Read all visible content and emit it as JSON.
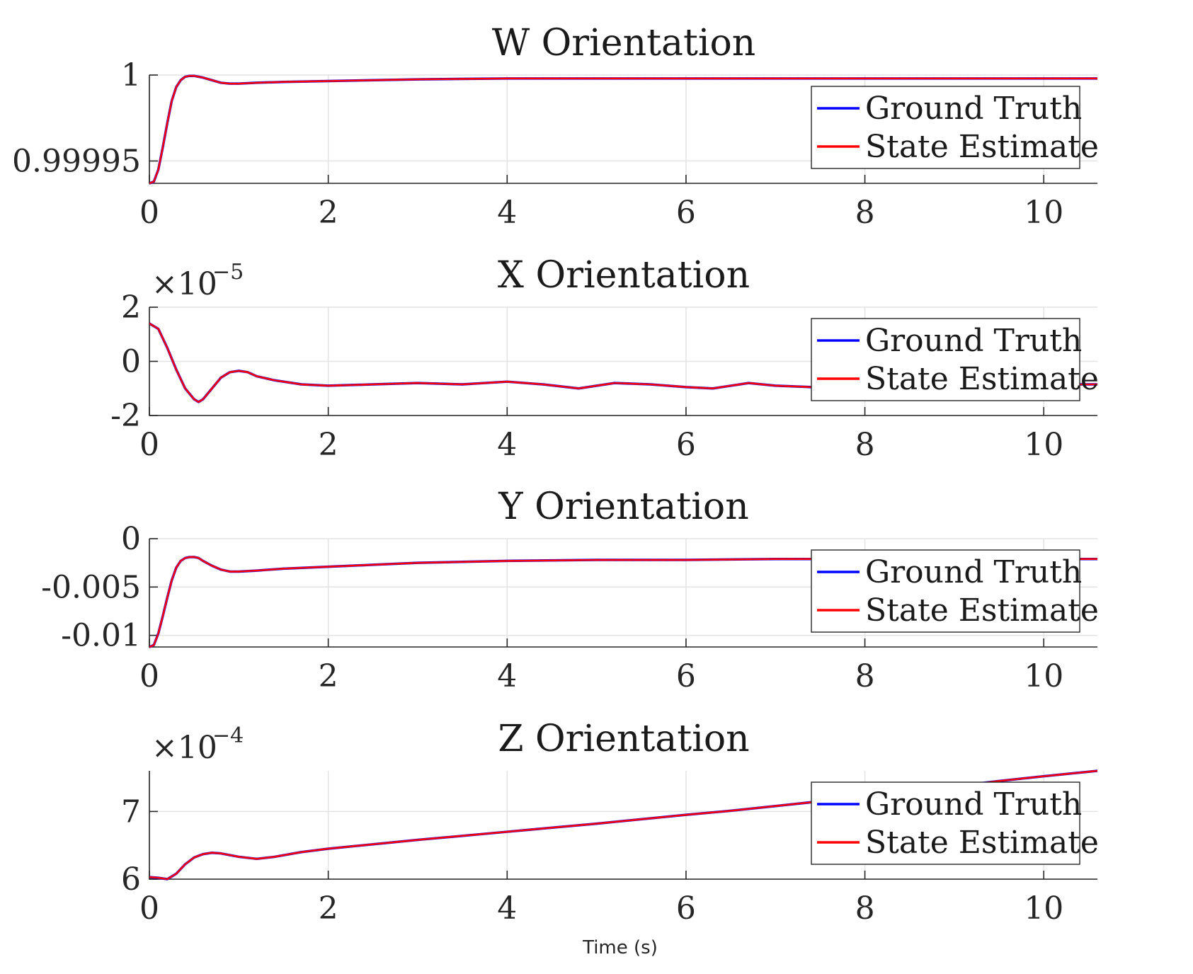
{
  "figure": {
    "xlabel": "Time (s)"
  },
  "legend": {
    "items": [
      {
        "label": "Ground Truth",
        "color": "#0000ff"
      },
      {
        "label": "State Estimate",
        "color": "#ff0000"
      }
    ]
  },
  "chart_data": [
    {
      "type": "line",
      "title": "W Orientation",
      "xlim": [
        0,
        10.6
      ],
      "ylim": [
        0.999937,
        1.0
      ],
      "xticks": [
        0,
        2,
        4,
        6,
        8,
        10
      ],
      "xtick_labels": [
        "0",
        "2",
        "4",
        "6",
        "8",
        "10"
      ],
      "yticks": [
        0.99995,
        1.0
      ],
      "ytick_labels": [
        "0.99995",
        "1"
      ],
      "multiplier": "",
      "legend_position": "top-right",
      "grid": true,
      "series": [
        {
          "name": "Ground Truth",
          "x": [
            0,
            0.05,
            0.1,
            0.15,
            0.2,
            0.25,
            0.3,
            0.35,
            0.4,
            0.45,
            0.5,
            0.6,
            0.7,
            0.8,
            0.9,
            1.0,
            1.2,
            1.5,
            2.0,
            3.0,
            4.0,
            5.0,
            6.0,
            7.0,
            8.0,
            9.0,
            10.0,
            10.6
          ],
          "y": [
            0.999937,
            0.999938,
            0.999945,
            0.999958,
            0.999972,
            0.999985,
            0.999993,
            0.999997,
            0.999999,
            0.9999995,
            0.9999995,
            0.9999985,
            0.999997,
            0.9999955,
            0.999995,
            0.999995,
            0.9999955,
            0.999996,
            0.9999965,
            0.9999975,
            0.999998,
            0.999998,
            0.999998,
            0.999998,
            0.999998,
            0.999998,
            0.999998,
            0.999998
          ]
        },
        {
          "name": "State Estimate",
          "x": [
            0,
            0.05,
            0.1,
            0.15,
            0.2,
            0.25,
            0.3,
            0.35,
            0.4,
            0.45,
            0.5,
            0.6,
            0.7,
            0.8,
            0.9,
            1.0,
            1.2,
            1.5,
            2.0,
            3.0,
            4.0,
            5.0,
            6.0,
            7.0,
            8.0,
            9.0,
            10.0,
            10.6
          ],
          "y": [
            0.999937,
            0.999938,
            0.999945,
            0.999958,
            0.999972,
            0.999985,
            0.999993,
            0.999997,
            0.999999,
            0.9999995,
            0.9999995,
            0.9999985,
            0.999997,
            0.9999955,
            0.999995,
            0.999995,
            0.9999955,
            0.999996,
            0.9999965,
            0.9999975,
            0.999998,
            0.999998,
            0.999998,
            0.999998,
            0.999998,
            0.999998,
            0.999998,
            0.999998
          ]
        }
      ]
    },
    {
      "type": "line",
      "title": "X Orientation",
      "xlim": [
        0,
        10.6
      ],
      "ylim": [
        -2,
        2
      ],
      "xticks": [
        0,
        2,
        4,
        6,
        8,
        10
      ],
      "xtick_labels": [
        "0",
        "2",
        "4",
        "6",
        "8",
        "10"
      ],
      "yticks": [
        -2,
        0,
        2
      ],
      "ytick_labels": [
        "-2",
        "0",
        "2"
      ],
      "multiplier": "×10",
      "multiplier_exponent": "−5",
      "legend_position": "top-right",
      "grid": true,
      "series": [
        {
          "name": "Ground Truth",
          "x": [
            0,
            0.1,
            0.2,
            0.3,
            0.4,
            0.5,
            0.55,
            0.6,
            0.7,
            0.8,
            0.9,
            1.0,
            1.1,
            1.2,
            1.4,
            1.7,
            2.0,
            2.5,
            3.0,
            3.5,
            4.0,
            4.4,
            4.8,
            5.2,
            5.6,
            6.0,
            6.3,
            6.7,
            7.0,
            7.4,
            8.0,
            8.5,
            9.0,
            9.5,
            10.0,
            10.6
          ],
          "y": [
            1.4,
            1.2,
            0.5,
            -0.3,
            -1.0,
            -1.4,
            -1.5,
            -1.4,
            -1.0,
            -0.6,
            -0.4,
            -0.35,
            -0.4,
            -0.55,
            -0.7,
            -0.85,
            -0.9,
            -0.85,
            -0.8,
            -0.85,
            -0.75,
            -0.85,
            -1.0,
            -0.8,
            -0.85,
            -0.95,
            -1.0,
            -0.8,
            -0.9,
            -0.95,
            -0.8,
            -0.9,
            -0.85,
            -0.9,
            -0.85,
            -0.85
          ]
        },
        {
          "name": "State Estimate",
          "x": [
            0,
            0.1,
            0.2,
            0.3,
            0.4,
            0.5,
            0.55,
            0.6,
            0.7,
            0.8,
            0.9,
            1.0,
            1.1,
            1.2,
            1.4,
            1.7,
            2.0,
            2.5,
            3.0,
            3.5,
            4.0,
            4.4,
            4.8,
            5.2,
            5.6,
            6.0,
            6.3,
            6.7,
            7.0,
            7.4,
            8.0,
            8.5,
            9.0,
            9.5,
            10.0,
            10.6
          ],
          "y": [
            1.4,
            1.2,
            0.5,
            -0.3,
            -1.0,
            -1.4,
            -1.5,
            -1.4,
            -1.0,
            -0.6,
            -0.4,
            -0.35,
            -0.4,
            -0.55,
            -0.7,
            -0.85,
            -0.9,
            -0.85,
            -0.8,
            -0.85,
            -0.75,
            -0.85,
            -1.0,
            -0.8,
            -0.85,
            -0.95,
            -1.0,
            -0.8,
            -0.9,
            -0.95,
            -0.8,
            -0.9,
            -0.85,
            -0.9,
            -0.85,
            -0.85
          ]
        }
      ]
    },
    {
      "type": "line",
      "title": "Y Orientation",
      "xlim": [
        0,
        10.6
      ],
      "ylim": [
        -0.0112,
        0
      ],
      "xticks": [
        0,
        2,
        4,
        6,
        8,
        10
      ],
      "xtick_labels": [
        "0",
        "2",
        "4",
        "6",
        "8",
        "10"
      ],
      "yticks": [
        -0.01,
        -0.005,
        0
      ],
      "ytick_labels": [
        "-0.01",
        "-0.005",
        "0"
      ],
      "multiplier": "",
      "legend_position": "top-right",
      "grid": true,
      "series": [
        {
          "name": "Ground Truth",
          "x": [
            0,
            0.05,
            0.1,
            0.15,
            0.2,
            0.25,
            0.3,
            0.35,
            0.4,
            0.45,
            0.5,
            0.55,
            0.6,
            0.7,
            0.8,
            0.9,
            1.0,
            1.2,
            1.5,
            2.0,
            2.5,
            3.0,
            4.0,
            5.0,
            6.0,
            7.0,
            8.0,
            9.0,
            10.0,
            10.6
          ],
          "y": [
            -0.0112,
            -0.011,
            -0.0098,
            -0.008,
            -0.0061,
            -0.0043,
            -0.003,
            -0.0023,
            -0.002,
            -0.0019,
            -0.0019,
            -0.002,
            -0.0023,
            -0.0028,
            -0.0032,
            -0.0034,
            -0.0034,
            -0.0033,
            -0.0031,
            -0.0029,
            -0.0027,
            -0.0025,
            -0.0023,
            -0.0022,
            -0.0022,
            -0.0021,
            -0.0021,
            -0.0021,
            -0.0021,
            -0.0021
          ]
        },
        {
          "name": "State Estimate",
          "x": [
            0,
            0.05,
            0.1,
            0.15,
            0.2,
            0.25,
            0.3,
            0.35,
            0.4,
            0.45,
            0.5,
            0.55,
            0.6,
            0.7,
            0.8,
            0.9,
            1.0,
            1.2,
            1.5,
            2.0,
            2.5,
            3.0,
            4.0,
            5.0,
            6.0,
            7.0,
            8.0,
            9.0,
            10.0,
            10.6
          ],
          "y": [
            -0.0112,
            -0.011,
            -0.0098,
            -0.008,
            -0.0061,
            -0.0043,
            -0.003,
            -0.0023,
            -0.002,
            -0.0019,
            -0.0019,
            -0.002,
            -0.0023,
            -0.0028,
            -0.0032,
            -0.0034,
            -0.0034,
            -0.0033,
            -0.0031,
            -0.0029,
            -0.0027,
            -0.0025,
            -0.0023,
            -0.0022,
            -0.0022,
            -0.0021,
            -0.0021,
            -0.0021,
            -0.0021,
            -0.0021
          ]
        }
      ]
    },
    {
      "type": "line",
      "title": "Z Orientation",
      "xlim": [
        0,
        10.6
      ],
      "ylim": [
        6.0,
        7.6
      ],
      "xticks": [
        0,
        2,
        4,
        6,
        8,
        10
      ],
      "xtick_labels": [
        "0",
        "2",
        "4",
        "6",
        "8",
        "10"
      ],
      "yticks": [
        6,
        7
      ],
      "ytick_labels": [
        "6",
        "7"
      ],
      "multiplier": "×10",
      "multiplier_exponent": "−4",
      "legend_position": "top-right",
      "grid": true,
      "series": [
        {
          "name": "Ground Truth",
          "x": [
            0,
            0.1,
            0.2,
            0.3,
            0.4,
            0.5,
            0.6,
            0.7,
            0.8,
            1.0,
            1.2,
            1.4,
            1.7,
            2.0,
            3.0,
            4.0,
            5.0,
            6.0,
            6.5,
            7.0,
            7.5,
            8.0,
            8.5,
            9.0,
            9.5,
            10.0,
            10.6
          ],
          "y": [
            6.03,
            6.02,
            6.0,
            6.08,
            6.22,
            6.32,
            6.37,
            6.39,
            6.38,
            6.33,
            6.3,
            6.33,
            6.4,
            6.45,
            6.58,
            6.7,
            6.82,
            6.95,
            7.01,
            7.08,
            7.15,
            7.22,
            7.28,
            7.37,
            7.45,
            7.52,
            7.6
          ]
        },
        {
          "name": "State Estimate",
          "x": [
            0,
            0.1,
            0.2,
            0.3,
            0.4,
            0.5,
            0.6,
            0.7,
            0.8,
            1.0,
            1.2,
            1.4,
            1.7,
            2.0,
            3.0,
            4.0,
            5.0,
            6.0,
            6.5,
            7.0,
            7.5,
            8.0,
            8.5,
            9.0,
            9.5,
            10.0,
            10.6
          ],
          "y": [
            6.03,
            6.02,
            6.0,
            6.08,
            6.22,
            6.32,
            6.37,
            6.39,
            6.38,
            6.33,
            6.3,
            6.33,
            6.4,
            6.45,
            6.58,
            6.7,
            6.82,
            6.95,
            7.01,
            7.08,
            7.15,
            7.22,
            7.28,
            7.37,
            7.45,
            7.52,
            7.6
          ]
        }
      ]
    }
  ]
}
